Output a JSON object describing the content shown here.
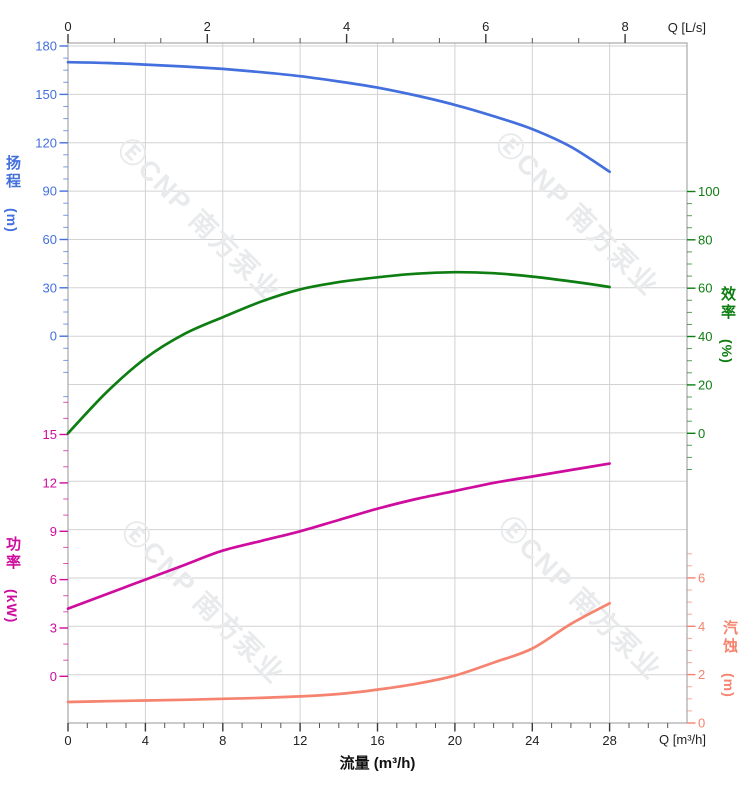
{
  "watermark": {
    "text": "ⒺCNP 南方泵业",
    "brand": "CNP 南方泵业"
  },
  "axes": {
    "top": {
      "label": "Q [L/s]",
      "ticks": [
        0,
        2,
        4,
        6,
        8
      ]
    },
    "bottom": {
      "label": "Q [m³/h]",
      "title": "流量 (m³/h)",
      "ticks": [
        0,
        4,
        8,
        12,
        16,
        20,
        24,
        28
      ]
    },
    "head": {
      "title": "扬程",
      "unit": "(m)",
      "color": "#4470de",
      "ticks": [
        180,
        150,
        120,
        90,
        60,
        30,
        0
      ]
    },
    "efficiency": {
      "title": "效率",
      "unit": "(%)",
      "color": "#0e7e12",
      "ticks": [
        100,
        80,
        60,
        40,
        20,
        0
      ]
    },
    "power": {
      "title": "功率",
      "unit": "(kW)",
      "color": "#ce0c9e",
      "ticks": [
        15,
        12,
        9,
        6,
        3,
        0
      ]
    },
    "npsh": {
      "title": "汽蚀",
      "unit": "(m)",
      "color": "#f5836f",
      "ticks": [
        6,
        4,
        2,
        0
      ]
    }
  },
  "chart_data": {
    "type": "line",
    "title": "",
    "xlabel": "流量 (m³/h)",
    "x_units": "m³/h",
    "x_top_units": "L/s",
    "x_range_m3h": [
      0,
      32
    ],
    "x_range_ls": [
      0,
      8
    ],
    "grid": true,
    "x": [
      0,
      2,
      4,
      6,
      8,
      10,
      12,
      14,
      16,
      18,
      20,
      22,
      24,
      26,
      28
    ],
    "series": [
      {
        "name": "head",
        "label": "扬程",
        "axis": "head",
        "units": "m",
        "color": "#4470de",
        "values": [
          170,
          169.5,
          168.5,
          167.3,
          165.8,
          163.8,
          161.3,
          158,
          154.2,
          149.3,
          143.5,
          136.5,
          128.5,
          117.5,
          102
        ]
      },
      {
        "name": "efficiency",
        "label": "效率",
        "axis": "efficiency",
        "units": "%",
        "color": "#0e7e12",
        "values": [
          0,
          17,
          31,
          41,
          48,
          54.5,
          59.5,
          62.5,
          64.5,
          66,
          66.6,
          66.2,
          64.8,
          62.8,
          60.5
        ]
      },
      {
        "name": "power",
        "label": "功率",
        "axis": "power",
        "units": "kW",
        "color": "#ce0c9e",
        "values": [
          4.2,
          5.1,
          6,
          6.9,
          7.8,
          8.4,
          9,
          9.7,
          10.4,
          11,
          11.5,
          12,
          12.4,
          12.8,
          13.2
        ]
      },
      {
        "name": "npsh",
        "label": "汽蚀",
        "axis": "npsh",
        "units": "m",
        "color": "#f5836f",
        "values": [
          0.87,
          0.9,
          0.93,
          0.96,
          1,
          1.04,
          1.1,
          1.2,
          1.38,
          1.62,
          1.96,
          2.5,
          3.08,
          4.1,
          4.95
        ]
      }
    ],
    "axis_ranges": {
      "head": [
        0,
        180
      ],
      "efficiency": [
        0,
        100
      ],
      "power": [
        0,
        15
      ],
      "npsh": [
        0,
        6
      ]
    }
  }
}
